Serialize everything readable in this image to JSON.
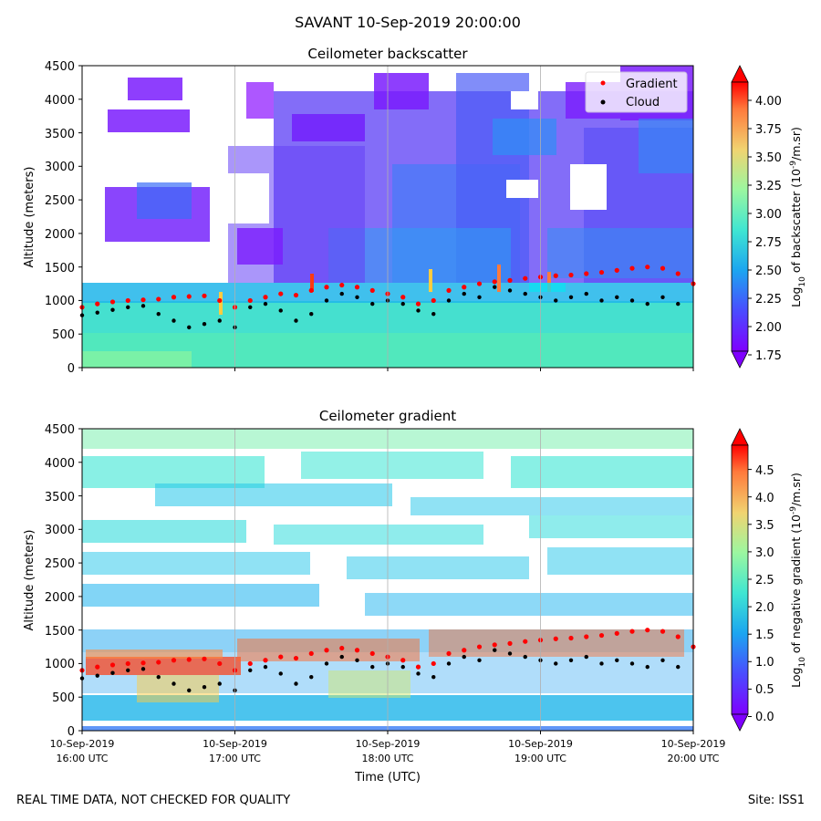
{
  "title": "SAVANT 10-Sep-2019 20:00:00",
  "footer": {
    "left": "REAL TIME DATA, NOT CHECKED FOR QUALITY",
    "right": "Site: ISS1"
  },
  "chart_data": [
    {
      "type": "heatmap",
      "title": "Ceilometer backscatter",
      "xlabel": "",
      "ylabel": "Altitude (meters)",
      "ylim": [
        0,
        4500
      ],
      "yticks": [
        "0",
        "500",
        "1000",
        "1500",
        "2000",
        "2500",
        "3000",
        "3500",
        "4000",
        "4500"
      ],
      "xlim_hours": [
        16,
        20
      ],
      "xtick_hours": [
        16,
        17,
        18,
        19,
        20
      ],
      "colorbar": {
        "label": "Log10 of backscatter (10^-9/m.sr)",
        "range": [
          1.75,
          4.2
        ],
        "ticks": [
          "1.75",
          "2.00",
          "2.25",
          "2.50",
          "2.75",
          "3.00",
          "3.25",
          "3.50",
          "3.75",
          "4.00"
        ]
      },
      "legend": {
        "position": "top-right",
        "entries": [
          "Gradient",
          "Cloud"
        ]
      },
      "series": [
        {
          "name": "Gradient",
          "x_hours": [
            16.0,
            16.1,
            16.2,
            16.3,
            16.4,
            16.5,
            16.6,
            16.7,
            16.8,
            16.9,
            17.0,
            17.1,
            17.2,
            17.3,
            17.4,
            17.5,
            17.6,
            17.7,
            17.8,
            17.9,
            18.0,
            18.1,
            18.2,
            18.3,
            18.4,
            18.5,
            18.6,
            18.7,
            18.8,
            18.9,
            19.0,
            19.1,
            19.2,
            19.3,
            19.4,
            19.5,
            19.6,
            19.7,
            19.8,
            19.9,
            20.0
          ],
          "altitude_m": [
            900,
            950,
            980,
            1000,
            1010,
            1020,
            1050,
            1060,
            1070,
            1000,
            900,
            1000,
            1050,
            1100,
            1080,
            1150,
            1200,
            1230,
            1200,
            1150,
            1100,
            1050,
            950,
            1000,
            1150,
            1200,
            1250,
            1280,
            1300,
            1330,
            1350,
            1370,
            1380,
            1400,
            1420,
            1450,
            1480,
            1500,
            1480,
            1400,
            1250
          ]
        },
        {
          "name": "Cloud",
          "x_hours": [
            16.0,
            16.1,
            16.2,
            16.3,
            16.4,
            16.5,
            16.6,
            16.7,
            16.8,
            16.9,
            17.0,
            17.1,
            17.2,
            17.3,
            17.4,
            17.5,
            17.6,
            17.7,
            17.8,
            17.9,
            18.0,
            18.1,
            18.2,
            18.3,
            18.4,
            18.5,
            18.6,
            18.7,
            18.8,
            18.9,
            19.0,
            19.1,
            19.2,
            19.3,
            19.4,
            19.5,
            19.6,
            19.7,
            19.8,
            19.9
          ],
          "altitude_m": [
            780,
            820,
            860,
            900,
            920,
            800,
            700,
            600,
            650,
            700,
            600,
            900,
            950,
            850,
            700,
            800,
            1000,
            1100,
            1050,
            950,
            1000,
            950,
            850,
            800,
            1000,
            1100,
            1050,
            1200,
            1150,
            1100,
            1050,
            1000,
            1050,
            1100,
            1000,
            1050,
            1000,
            950,
            1050,
            950
          ]
        }
      ]
    },
    {
      "type": "heatmap",
      "title": "Ceilometer gradient",
      "xlabel": "Time (UTC)",
      "ylabel": "Altitude (meters)",
      "ylim": [
        0,
        4500
      ],
      "yticks": [
        "0",
        "500",
        "1000",
        "1500",
        "2000",
        "2500",
        "3000",
        "3500",
        "4000",
        "4500"
      ],
      "xlim_hours": [
        16,
        20
      ],
      "xticks": [
        {
          "hour": 16,
          "date": "10-Sep-2019",
          "time": "16:00 UTC"
        },
        {
          "hour": 17,
          "date": "10-Sep-2019",
          "time": "17:00 UTC"
        },
        {
          "hour": 18,
          "date": "10-Sep-2019",
          "time": "18:00 UTC"
        },
        {
          "hour": 19,
          "date": "10-Sep-2019",
          "time": "19:00 UTC"
        },
        {
          "hour": 20,
          "date": "10-Sep-2019",
          "time": "20:00 UTC"
        }
      ],
      "colorbar": {
        "label": "Log10 of negative gradient (10^-9/m.sr)",
        "range": [
          0.0,
          4.9
        ],
        "ticks": [
          "0.0",
          "0.5",
          "1.0",
          "1.5",
          "2.0",
          "2.5",
          "3.0",
          "3.5",
          "4.0",
          "4.5"
        ]
      },
      "series": [
        {
          "name": "Gradient",
          "x_hours": [
            16.0,
            16.1,
            16.2,
            16.3,
            16.4,
            16.5,
            16.6,
            16.7,
            16.8,
            16.9,
            17.0,
            17.1,
            17.2,
            17.3,
            17.4,
            17.5,
            17.6,
            17.7,
            17.8,
            17.9,
            18.0,
            18.1,
            18.2,
            18.3,
            18.4,
            18.5,
            18.6,
            18.7,
            18.8,
            18.9,
            19.0,
            19.1,
            19.2,
            19.3,
            19.4,
            19.5,
            19.6,
            19.7,
            19.8,
            19.9,
            20.0
          ],
          "altitude_m": [
            900,
            950,
            980,
            1000,
            1010,
            1020,
            1050,
            1060,
            1070,
            1000,
            900,
            1000,
            1050,
            1100,
            1080,
            1150,
            1200,
            1230,
            1200,
            1150,
            1100,
            1050,
            950,
            1000,
            1150,
            1200,
            1250,
            1280,
            1300,
            1330,
            1350,
            1370,
            1380,
            1400,
            1420,
            1450,
            1480,
            1500,
            1480,
            1400,
            1250
          ]
        },
        {
          "name": "Cloud",
          "x_hours": [
            16.0,
            16.1,
            16.2,
            16.3,
            16.4,
            16.5,
            16.6,
            16.7,
            16.8,
            16.9,
            17.0,
            17.1,
            17.2,
            17.3,
            17.4,
            17.5,
            17.6,
            17.7,
            17.8,
            17.9,
            18.0,
            18.1,
            18.2,
            18.3,
            18.4,
            18.5,
            18.6,
            18.7,
            18.8,
            18.9,
            19.0,
            19.1,
            19.2,
            19.3,
            19.4,
            19.5,
            19.6,
            19.7,
            19.8,
            19.9
          ],
          "altitude_m": [
            780,
            820,
            860,
            900,
            920,
            800,
            700,
            600,
            650,
            700,
            600,
            900,
            950,
            850,
            700,
            800,
            1000,
            1100,
            1050,
            950,
            1000,
            950,
            850,
            800,
            1000,
            1100,
            1050,
            1200,
            1150,
            1100,
            1050,
            1000,
            1050,
            1100,
            1000,
            1050,
            1000,
            950,
            1050,
            950
          ]
        }
      ]
    }
  ]
}
